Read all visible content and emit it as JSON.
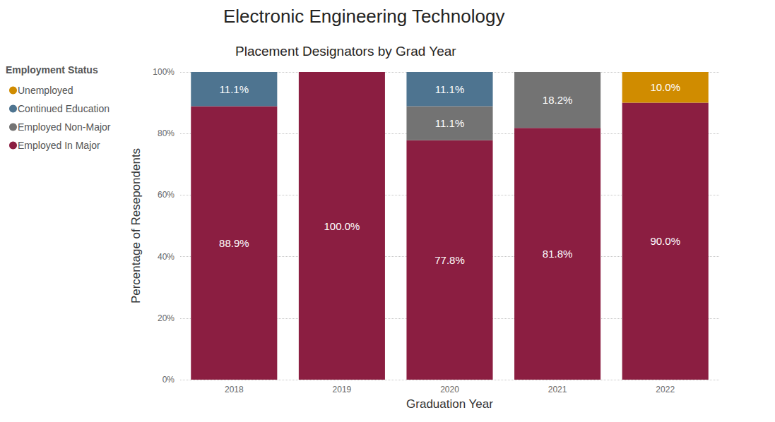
{
  "chart_data": {
    "type": "bar",
    "title": "Electronic Engineering Technology",
    "subtitle": "Placement Designators by Grad Year",
    "x_label": "Graduation Year",
    "y_label": "Percentage of Resepondents",
    "legend_title": "Employment Status",
    "categories": [
      "2018",
      "2019",
      "2020",
      "2021",
      "2022"
    ],
    "series": [
      {
        "name": "Employed In Major",
        "color": "#8b1e41",
        "values": [
          88.9,
          100.0,
          77.8,
          81.8,
          90.0
        ],
        "value_labels": [
          "88.9%",
          "100.0%",
          "77.8%",
          "81.8%",
          "90.0%"
        ]
      },
      {
        "name": "Employed Non-Major",
        "color": "#737373",
        "values": [
          null,
          null,
          11.1,
          18.2,
          null
        ],
        "value_labels": [
          null,
          null,
          "11.1%",
          "18.2%",
          null
        ]
      },
      {
        "name": "Continued Education",
        "color": "#4e7490",
        "values": [
          11.1,
          null,
          11.1,
          null,
          null
        ],
        "value_labels": [
          "11.1%",
          null,
          "11.1%",
          null,
          null
        ]
      },
      {
        "name": "Unemployed",
        "color": "#d08c00",
        "values": [
          null,
          null,
          null,
          null,
          10.0
        ],
        "value_labels": [
          null,
          null,
          null,
          null,
          "10.0%"
        ]
      }
    ],
    "ylim": [
      0,
      100
    ],
    "yticks": [
      {
        "value": 0,
        "label": "0%"
      },
      {
        "value": 20,
        "label": "20%"
      },
      {
        "value": 40,
        "label": "40%"
      },
      {
        "value": 60,
        "label": "60%"
      },
      {
        "value": 80,
        "label": "80%"
      },
      {
        "value": 100,
        "label": "100%"
      }
    ],
    "stacked": true,
    "data_labels": true,
    "grid": true,
    "legend": "left"
  }
}
